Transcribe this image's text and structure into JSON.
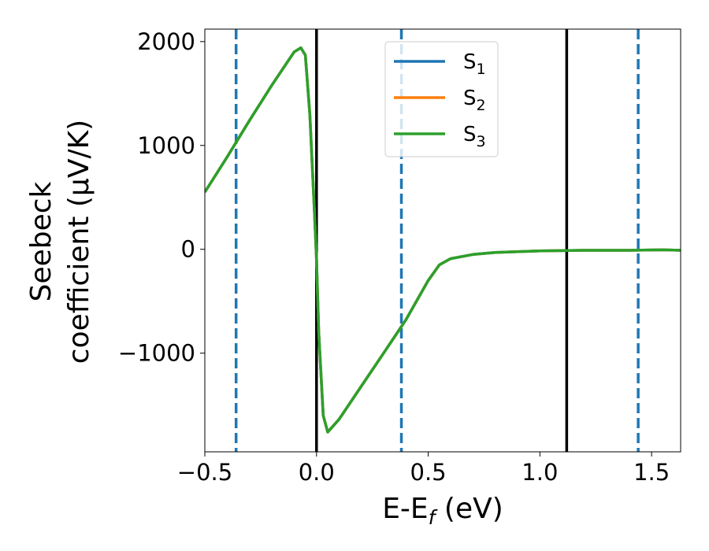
{
  "chart_data": {
    "type": "line",
    "title": "",
    "xlabel": "E-E_f (eV)",
    "ylabel": "Seebeck coefficient (μV/K)",
    "xlabel_parts": {
      "main": "E-E",
      "sub": "f",
      "rest": " (eV)"
    },
    "ylabel_lines": [
      "Seebeck",
      "coefficient  (μV/K)"
    ],
    "xlim": [
      -0.5,
      1.63
    ],
    "ylim": [
      -1950,
      2120
    ],
    "xticks": [
      -0.5,
      0.0,
      0.5,
      1.0,
      1.5
    ],
    "xtick_labels": [
      "−0.5",
      "0.0",
      "0.5",
      "1.0",
      "1.5"
    ],
    "yticks": [
      -1000,
      0,
      1000,
      2000
    ],
    "ytick_labels": [
      "−1000",
      "0",
      "1000",
      "2000"
    ],
    "grid": false,
    "legend_position": "top-center",
    "series": [
      {
        "name": "S₁",
        "legend_main": "S",
        "legend_sub": "1",
        "color": "#1f77b4",
        "x": [
          -0.5,
          -0.4,
          -0.3,
          -0.2,
          -0.1,
          -0.07,
          -0.05,
          -0.03,
          -0.01,
          0.0,
          0.01,
          0.03,
          0.05,
          0.1,
          0.2,
          0.3,
          0.4,
          0.5,
          0.55,
          0.6,
          0.7,
          0.8,
          1.0,
          1.2,
          1.4,
          1.55,
          1.63
        ],
        "y": [
          550,
          890,
          1240,
          1580,
          1900,
          1940,
          1870,
          1300,
          400,
          -100,
          -800,
          -1600,
          -1760,
          -1640,
          -1320,
          -1000,
          -680,
          -300,
          -150,
          -90,
          -50,
          -30,
          -15,
          -10,
          -10,
          -5,
          -10
        ]
      },
      {
        "name": "S₂",
        "legend_main": "S",
        "legend_sub": "2",
        "color": "#ff7f0e",
        "x": [
          -0.5,
          -0.4,
          -0.3,
          -0.2,
          -0.1,
          -0.07,
          -0.05,
          -0.03,
          -0.01,
          0.0,
          0.01,
          0.03,
          0.05,
          0.1,
          0.2,
          0.3,
          0.4,
          0.5,
          0.55,
          0.6,
          0.7,
          0.8,
          1.0,
          1.2,
          1.4,
          1.55,
          1.63
        ],
        "y": [
          550,
          890,
          1240,
          1580,
          1900,
          1940,
          1870,
          1300,
          400,
          -100,
          -800,
          -1600,
          -1760,
          -1640,
          -1320,
          -1000,
          -680,
          -300,
          -150,
          -90,
          -50,
          -30,
          -15,
          -10,
          -10,
          -5,
          -10
        ]
      },
      {
        "name": "S₃",
        "legend_main": "S",
        "legend_sub": "3",
        "color": "#2ca02c",
        "x": [
          -0.5,
          -0.4,
          -0.3,
          -0.2,
          -0.1,
          -0.07,
          -0.05,
          -0.03,
          -0.01,
          0.0,
          0.01,
          0.03,
          0.05,
          0.1,
          0.2,
          0.3,
          0.4,
          0.5,
          0.55,
          0.6,
          0.7,
          0.8,
          1.0,
          1.2,
          1.4,
          1.55,
          1.63
        ],
        "y": [
          550,
          890,
          1240,
          1580,
          1900,
          1940,
          1870,
          1300,
          400,
          -100,
          -800,
          -1600,
          -1760,
          -1640,
          -1320,
          -1000,
          -680,
          -300,
          -150,
          -90,
          -50,
          -30,
          -15,
          -10,
          -10,
          -5,
          -10
        ]
      }
    ],
    "vlines_solid": [
      0.0,
      1.12
    ],
    "vlines_dashed": [
      -0.36,
      0.38,
      1.44
    ],
    "vline_solid_color": "#000000",
    "vline_dashed_color": "#1f77b4"
  }
}
